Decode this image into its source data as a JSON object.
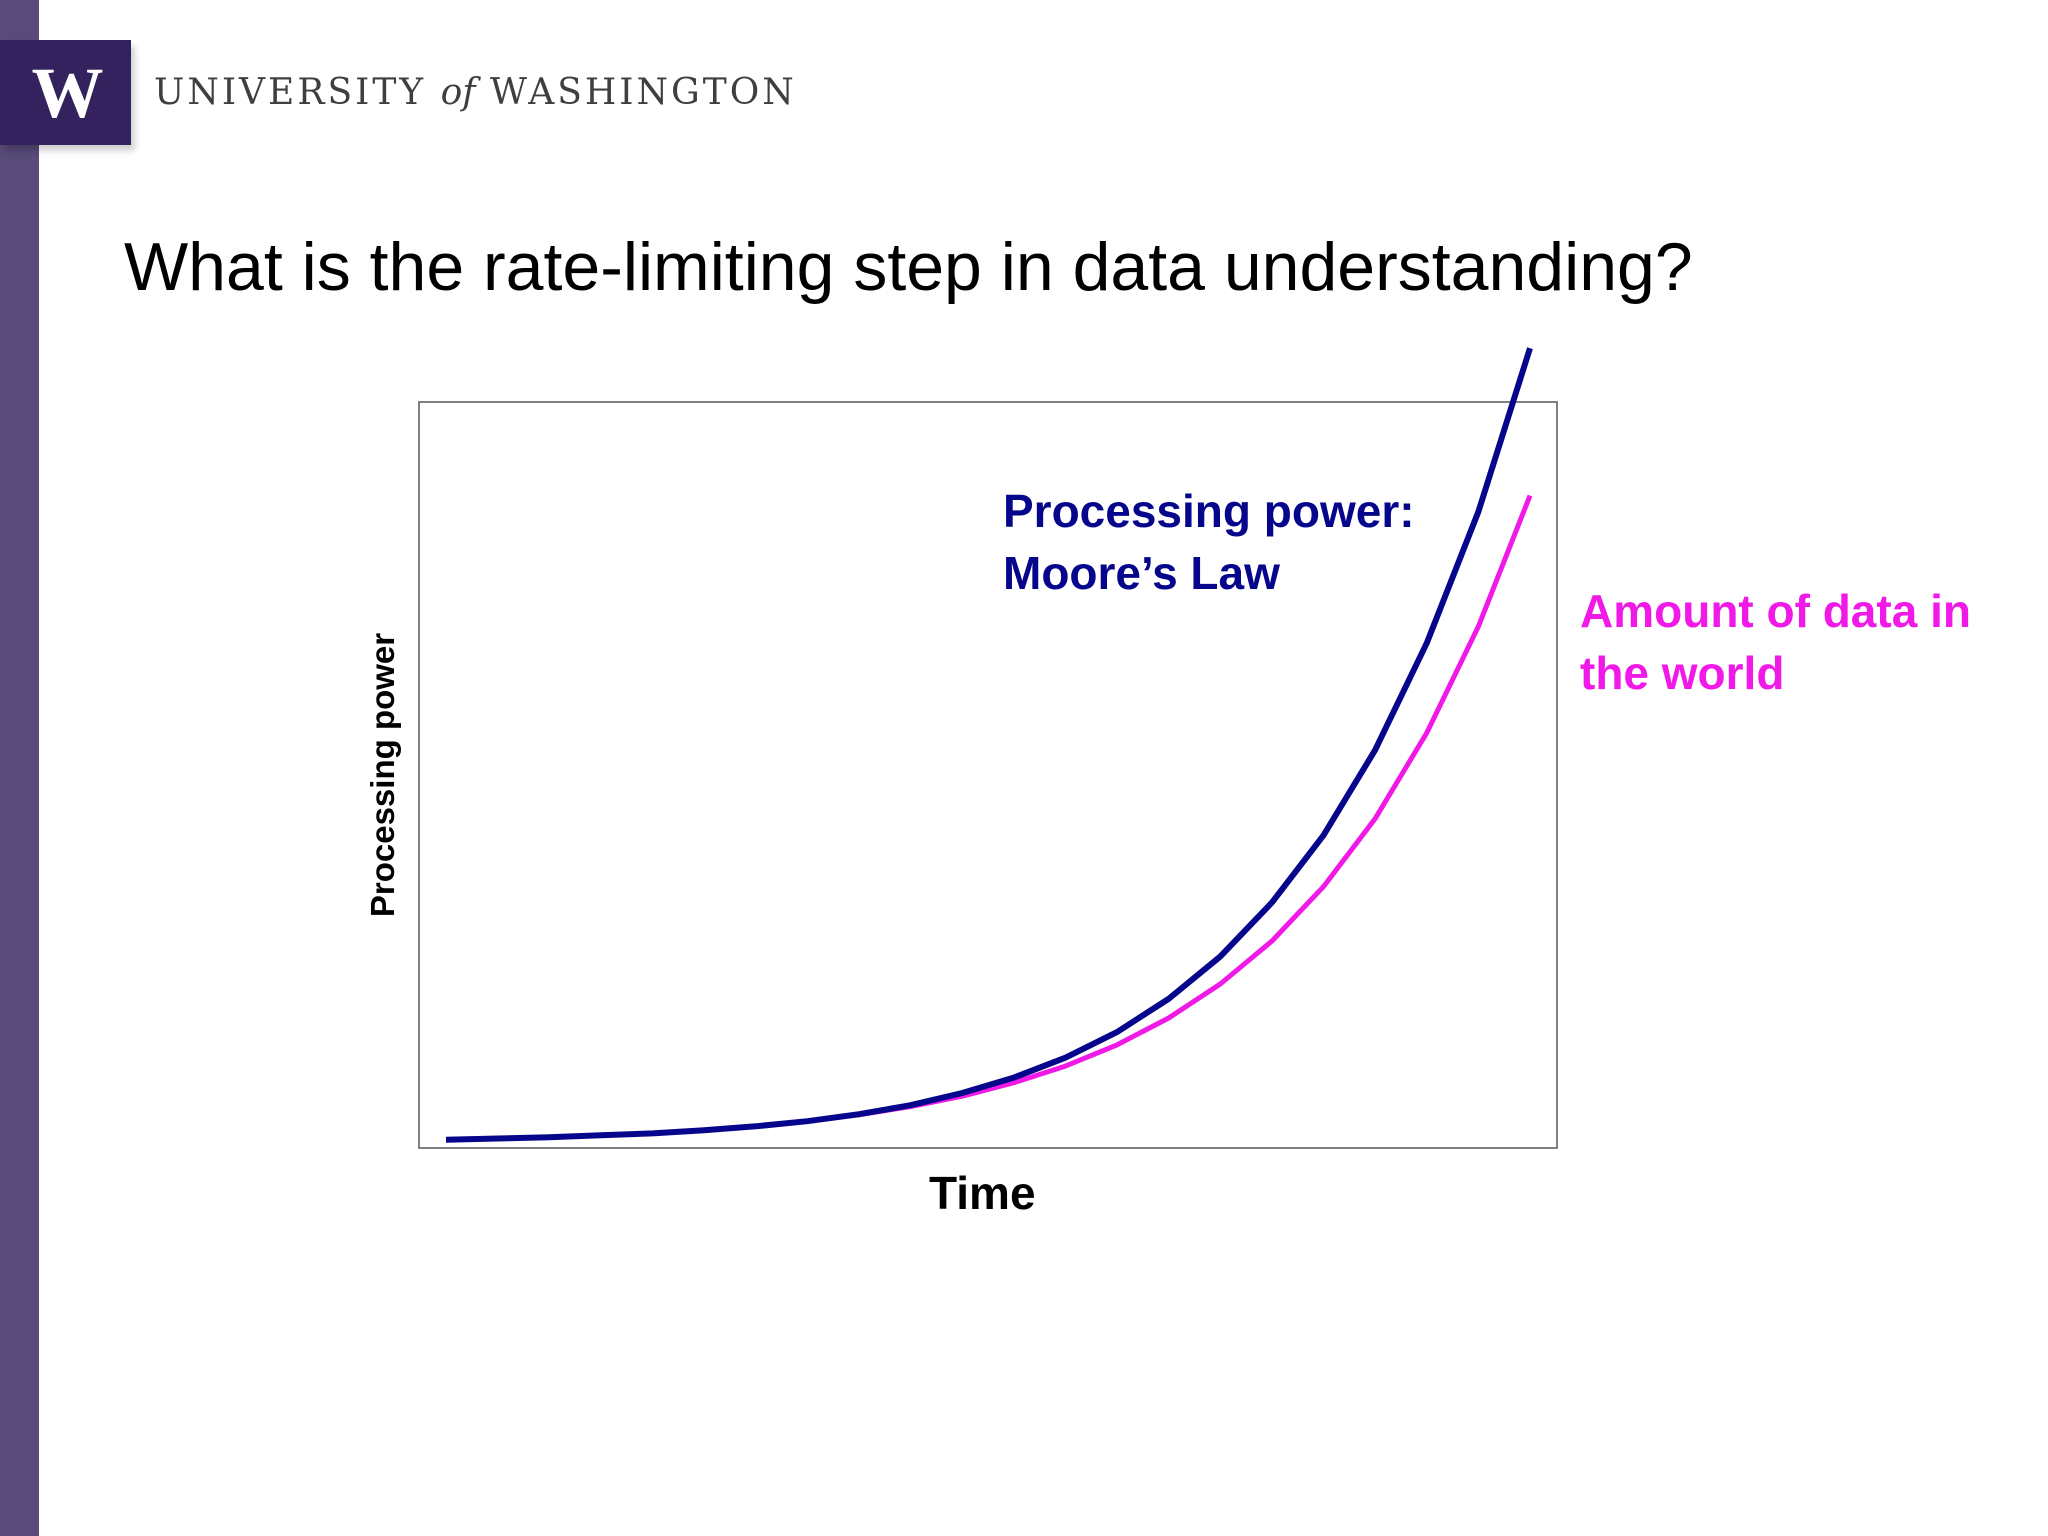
{
  "header": {
    "logo_letter": "W",
    "university_pre": "UNIVERSITY",
    "university_of": "of",
    "university_post": "WASHINGTON"
  },
  "slide": {
    "title": "What is the rate-limiting step in data understanding?"
  },
  "colors": {
    "sidebar": "#584a79",
    "logo_block": "#33225e",
    "processing_series": "#06068c",
    "data_series": "#f019e8",
    "plot_border": "#808080"
  },
  "chart_data": {
    "type": "line",
    "xlabel": "Time",
    "ylabel": "Processing power",
    "xlim": [
      0,
      21
    ],
    "ylim": [
      0,
      1.0
    ],
    "grid": false,
    "x": [
      0,
      1,
      2,
      3,
      4,
      5,
      6,
      7,
      8,
      9,
      10,
      11,
      12,
      13,
      14,
      15,
      16,
      17,
      18,
      19,
      20,
      21
    ],
    "series": [
      {
        "label_lines": [
          "Processing power:",
          "Moore’s Law"
        ],
        "color": "#06068c",
        "values": [
          0.005,
          0.007,
          0.009,
          0.012,
          0.015,
          0.02,
          0.026,
          0.034,
          0.045,
          0.059,
          0.078,
          0.102,
          0.133,
          0.173,
          0.225,
          0.291,
          0.375,
          0.48,
          0.613,
          0.78,
          0.985,
          1.24
        ]
      },
      {
        "label_lines": [
          "Amount of data in",
          "the world"
        ],
        "color": "#f019e8",
        "values": [
          0.005,
          0.007,
          0.009,
          0.012,
          0.015,
          0.02,
          0.026,
          0.034,
          0.044,
          0.057,
          0.073,
          0.094,
          0.12,
          0.153,
          0.195,
          0.248,
          0.315,
          0.4,
          0.506,
          0.64,
          0.806,
          1.01
        ]
      }
    ]
  }
}
